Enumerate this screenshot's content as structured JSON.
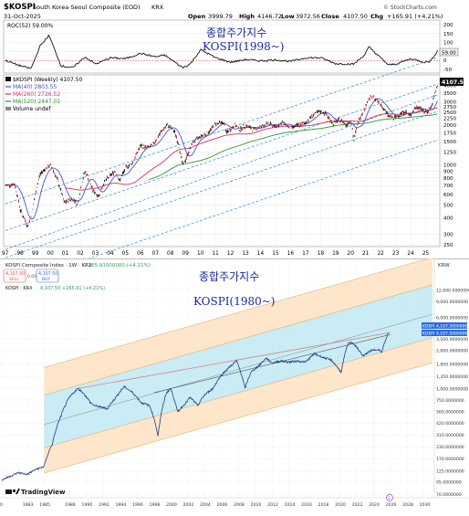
{
  "top": {
    "symbol": "$KOSPI",
    "description": "South Korea Seoul Composite (EOD)",
    "exchange": "KRX",
    "date": "31-Oct-2025",
    "ohlc": {
      "open_label": "Open",
      "open": "3999.79",
      "high_label": "High",
      "high": "4146.72",
      "low_label": "Low",
      "low": "3972.56",
      "close_label": "Close",
      "close": "4107.50",
      "chg_label": "Chg",
      "chg": "+165.91 (+4.21%)"
    },
    "credit": "© StockCharts.com",
    "roc_label": "ROC(52) 59.00%",
    "roc_ticks": [
      "200",
      "150",
      "100",
      "50",
      "0",
      "-50"
    ],
    "roc_value_tag": "59.00",
    "price_legend": {
      "title": "$KOSPI (Weekly) 4107.50",
      "ma1": "MA(40) 2803.55",
      "ma2": "MA(260) 2726.52",
      "ma3": "MA(520) 2447.01",
      "vol": "Volume undef"
    },
    "price_tag": "4107.50",
    "price_ticks": [
      "4000",
      "3500",
      "3000",
      "2750",
      "2500",
      "2250",
      "2000",
      "1750",
      "1500",
      "1250",
      "1000",
      "900",
      "800",
      "700",
      "600",
      "500",
      "400",
      "300",
      "250"
    ],
    "x_ticks": [
      "97",
      "98",
      "99",
      "00",
      "01",
      "02",
      "03",
      "04",
      "05",
      "06",
      "07",
      "08",
      "09",
      "10",
      "11",
      "12",
      "13",
      "14",
      "15",
      "16",
      "17",
      "18",
      "19",
      "20",
      "21",
      "22",
      "23",
      "24",
      "25"
    ],
    "annotation_line1": "종합주가지수",
    "annotation_line2": "KOSPI(1998~)"
  },
  "bottom": {
    "title": "KOSPI Composite Index · 1W · KRX",
    "change": "+165.91000000 (+4.21%)",
    "sell_price": "4,107.50",
    "sell_label": "SELL",
    "spread": "0.00",
    "buy_price": "4,107.50",
    "buy_label": "BUY",
    "series_row": "KOSPI · KRX",
    "series_change": "4,107.50 +165.91 (+4.21%)",
    "currency": "KRW",
    "brand": "TradingView",
    "annotation_line1": "종합주가지수",
    "annotation_line2": "KOSPI(1980~)",
    "tag1_label": "KOSPI",
    "tag1_value": "4,107.5000000",
    "tag2_label": "KOSPI",
    "tag2_value": "4,107.5000000",
    "event_marker": "E",
    "y_ticks": [
      "12,000.0000000",
      "9,000.0000000",
      "6,000.0000000",
      "3,500.0000000",
      "2,600.0000000",
      "1,850.0000000",
      "1,350.0000000",
      "1,000.0000000",
      "750.0000000",
      "560.0000000",
      "420.0000000",
      "310.0000000",
      "230.0000000",
      "170.0000000",
      "125.0000000",
      "95.0000000",
      "70.0000000"
    ],
    "x_ticks": [
      "80",
      "1983",
      "1985",
      "1988",
      "1990",
      "1992",
      "1994",
      "1996",
      "1998",
      "2000",
      "2002",
      "2004",
      "2006",
      "2008",
      "2010",
      "2012",
      "2014",
      "2016",
      "2018",
      "2020",
      "2022",
      "2024",
      "2026",
      "2028",
      "2030"
    ]
  },
  "chart_data": [
    {
      "type": "line",
      "title": "$KOSPI South Korea Seoul Composite (EOD) KRX",
      "scale": "log",
      "x_range": [
        1997,
        2025.8
      ],
      "ylim": [
        250,
        4500
      ],
      "grid": true,
      "legend": "top-left",
      "series": [
        {
          "name": "$KOSPI (Weekly)",
          "color": "#000000",
          "x": [
            1997.0,
            1997.6,
            1998.0,
            1998.5,
            1998.8,
            1999.3,
            1999.7,
            2000.0,
            2000.5,
            2000.9,
            2001.5,
            2001.8,
            2002.3,
            2002.8,
            2003.2,
            2003.6,
            2004.3,
            2004.6,
            2005.0,
            2005.5,
            2006.0,
            2006.4,
            2006.8,
            2007.4,
            2007.8,
            2008.3,
            2008.8,
            2009.0,
            2009.5,
            2010.0,
            2010.5,
            2011.0,
            2011.5,
            2011.7,
            2012.3,
            2012.6,
            2013.0,
            2013.5,
            2014.0,
            2014.5,
            2015.0,
            2015.4,
            2016.0,
            2016.5,
            2017.0,
            2017.5,
            2018.0,
            2018.3,
            2018.8,
            2019.3,
            2019.7,
            2020.0,
            2020.2,
            2020.5,
            2020.9,
            2021.2,
            2021.5,
            2022.0,
            2022.5,
            2022.9,
            2023.3,
            2023.6,
            2023.9,
            2024.3,
            2024.6,
            2024.9,
            2025.1,
            2025.4,
            2025.6,
            2025.8
          ],
          "y": [
            700,
            720,
            450,
            340,
            450,
            850,
            950,
            1000,
            750,
            520,
            560,
            500,
            900,
            650,
            580,
            750,
            900,
            750,
            950,
            1050,
            1400,
            1350,
            1400,
            1800,
            2000,
            1750,
            1000,
            1100,
            1500,
            1650,
            1750,
            2050,
            2100,
            1750,
            2000,
            1850,
            2000,
            1850,
            1950,
            2050,
            1950,
            2100,
            1900,
            2000,
            2100,
            2400,
            2550,
            2450,
            2050,
            2200,
            2000,
            2200,
            1500,
            2150,
            2650,
            3200,
            3250,
            2850,
            2350,
            2250,
            2450,
            2550,
            2350,
            2700,
            2750,
            2500,
            2550,
            2800,
            3450,
            4107.5
          ]
        },
        {
          "name": "MA(40)",
          "color": "#5555cc",
          "values_hint": "fast moving average of weekly close"
        },
        {
          "name": "MA(260)",
          "color": "#cc3366",
          "values_hint": "medium moving average of weekly close"
        },
        {
          "name": "MA(520)",
          "color": "#33aa33",
          "values_hint": "slow moving average of weekly close"
        }
      ],
      "indicator": {
        "name": "ROC(52)",
        "last": 59.0,
        "ylim": [
          -60,
          210
        ],
        "x": [
          1997.0,
          1998.0,
          1998.7,
          1999.3,
          1999.9,
          2000.7,
          2001.5,
          2002.3,
          2003.0,
          2004.0,
          2005.0,
          2006.0,
          2007.0,
          2007.6,
          2008.8,
          2009.3,
          2010.0,
          2011.0,
          2012.0,
          2013.0,
          2014.0,
          2015.0,
          2016.0,
          2017.0,
          2018.0,
          2019.0,
          2020.2,
          2020.9,
          2021.2,
          2021.6,
          2022.5,
          2023.0,
          2024.0,
          2024.9,
          2025.3,
          2025.8
        ],
        "y": [
          0,
          -30,
          -45,
          80,
          140,
          -30,
          -40,
          20,
          -20,
          15,
          10,
          40,
          20,
          30,
          -40,
          -20,
          60,
          15,
          -10,
          5,
          -2,
          3,
          -5,
          15,
          15,
          -18,
          -20,
          30,
          75,
          45,
          -25,
          -20,
          10,
          -10,
          -5,
          59
        ]
      }
    },
    {
      "type": "line",
      "title": "KOSPI Composite Index · 1W · KRX",
      "scale": "log",
      "x_range": [
        1980,
        2031
      ],
      "ylim": [
        70,
        16000
      ],
      "grid": true,
      "series": [
        {
          "name": "KOSPI · KRX",
          "color": "#2a3a8a",
          "x": [
            1980,
            1981,
            1982,
            1983,
            1984,
            1985,
            1986,
            1987,
            1988,
            1989,
            1989.5,
            1990.5,
            1991,
            1992.5,
            1993.5,
            1994.5,
            1995.5,
            1996.5,
            1997.5,
            1998.5,
            1999.5,
            2000.0,
            2000.8,
            2001.8,
            2002.3,
            2003.2,
            2004.0,
            2005.0,
            2006.0,
            2007.8,
            2008.8,
            2009.5,
            2010.5,
            2011.3,
            2012.0,
            2013.0,
            2014.0,
            2015.0,
            2016.0,
            2017.0,
            2018.0,
            2019.0,
            2020.2,
            2021.0,
            2021.5,
            2022.8,
            2023.5,
            2024.5,
            2025.0,
            2025.8
          ],
          "y": [
            100,
            110,
            120,
            115,
            130,
            140,
            250,
            500,
            800,
            1000,
            920,
            700,
            650,
            600,
            800,
            1050,
            900,
            700,
            650,
            300,
            900,
            1000,
            550,
            700,
            800,
            650,
            850,
            1000,
            1400,
            2000,
            1000,
            1500,
            1800,
            2150,
            1900,
            2000,
            1950,
            2000,
            1950,
            2400,
            2200,
            2050,
            1500,
            3100,
            3200,
            2250,
            2550,
            2700,
            2500,
            4107.5
          ]
        }
      ],
      "channel": "log-linear regression bands (inner cyan, outer orange)"
    }
  ]
}
